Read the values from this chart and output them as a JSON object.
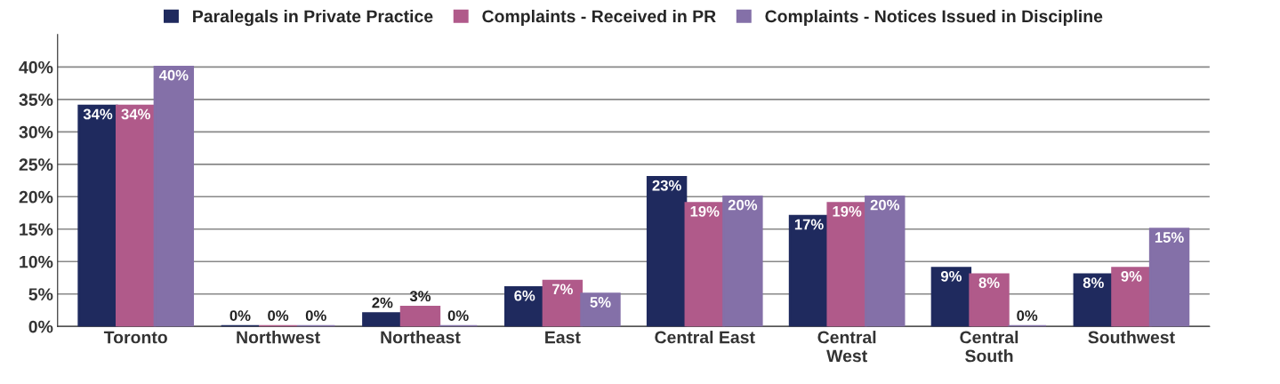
{
  "chart_data": {
    "type": "bar",
    "categories": [
      "Toronto",
      "Northwest",
      "Northeast",
      "East",
      "Central East",
      "Central\nWest",
      "Central\nSouth",
      "Southwest"
    ],
    "series": [
      {
        "name": "Paralegals in Private Practice",
        "color": "#1f2a5e",
        "values": [
          34,
          0,
          2,
          6,
          23,
          17,
          9,
          8
        ],
        "value_labels": [
          "34%",
          "0%",
          "2%",
          "6%",
          "23%",
          "17%",
          "9%",
          "8%"
        ]
      },
      {
        "name": "Complaints - Received in PR",
        "color": "#b05a8a",
        "values": [
          34,
          0,
          3,
          7,
          19,
          19,
          8,
          9
        ],
        "value_labels": [
          "34%",
          "0%",
          "3%",
          "7%",
          "19%",
          "19%",
          "8%",
          "9%"
        ]
      },
      {
        "name": "Complaints - Notices Issued in Discipline",
        "color": "#8470a8",
        "values": [
          40,
          0,
          0,
          5,
          20,
          20,
          0,
          15
        ],
        "value_labels": [
          "40%",
          "0%",
          "0%",
          "5%",
          "20%",
          "20%",
          "0%",
          "15%"
        ]
      }
    ],
    "ylim": [
      0,
      45
    ],
    "yticks": [
      {
        "value": 0,
        "label": "0%"
      },
      {
        "value": 5,
        "label": "5%"
      },
      {
        "value": 10,
        "label": "10%"
      },
      {
        "value": 15,
        "label": "15%"
      },
      {
        "value": 20,
        "label": "20%"
      },
      {
        "value": 25,
        "label": "25%"
      },
      {
        "value": 30,
        "label": "30%"
      },
      {
        "value": 35,
        "label": "35%"
      },
      {
        "value": 40,
        "label": "40%"
      }
    ],
    "grid": "y",
    "legend": "top"
  }
}
